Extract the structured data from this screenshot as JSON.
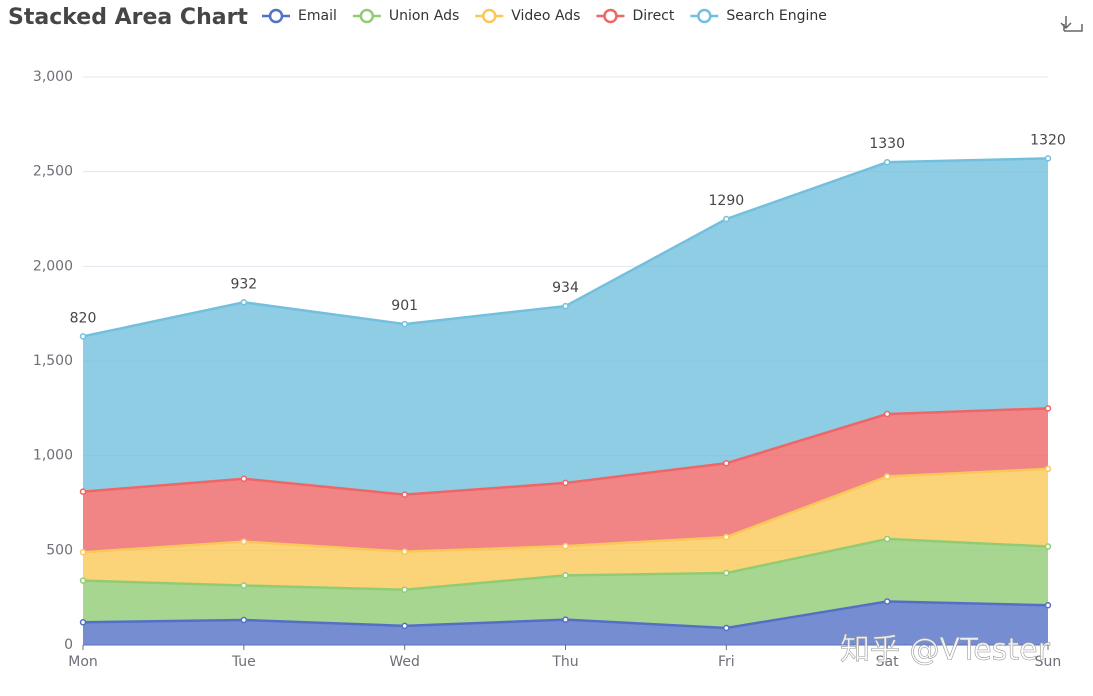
{
  "chart_data": {
    "type": "stacked_area",
    "title": "Stacked Area Chart",
    "categories": [
      "Mon",
      "Tue",
      "Wed",
      "Thu",
      "Fri",
      "Sat",
      "Sun"
    ],
    "series": [
      {
        "name": "Email",
        "color": "#5470c6",
        "values": [
          120,
          132,
          101,
          134,
          90,
          230,
          210
        ]
      },
      {
        "name": "Union Ads",
        "color": "#91cc75",
        "values": [
          220,
          182,
          191,
          234,
          290,
          330,
          310
        ]
      },
      {
        "name": "Video Ads",
        "color": "#fac858",
        "values": [
          150,
          232,
          201,
          154,
          190,
          330,
          410
        ]
      },
      {
        "name": "Direct",
        "color": "#ee6666",
        "values": [
          320,
          332,
          301,
          334,
          390,
          330,
          320
        ]
      },
      {
        "name": "Search Engine",
        "color": "#73c0de",
        "values": [
          820,
          932,
          901,
          934,
          1290,
          1330,
          1320
        ],
        "show_labels": true
      }
    ],
    "ylim": [
      0,
      3000
    ],
    "yticks": [
      0,
      500,
      {
        "value": 1000,
        "label": "1,000"
      },
      {
        "value": 1500,
        "label": "1,500"
      },
      {
        "value": 2000,
        "label": "2,000"
      },
      {
        "value": 2500,
        "label": "2,500"
      },
      {
        "value": 3000,
        "label": "3,000"
      }
    ],
    "grid": true,
    "watermark": "知乎 @VTester"
  }
}
